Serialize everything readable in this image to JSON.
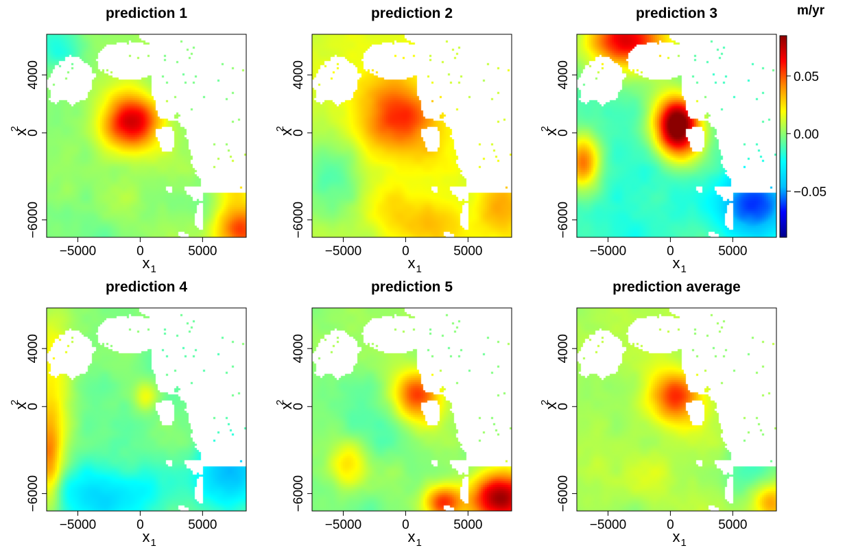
{
  "figure": {
    "type": "heatmap",
    "units": "m/yr"
  },
  "chart_data": {
    "type": "heatmap",
    "colorbar": {
      "label": "m/yr",
      "range": [
        -0.09,
        0.085
      ],
      "ticks": [
        -0.05,
        0.0,
        0.05
      ],
      "tick_labels": [
        "−0.05",
        "0.00",
        "0.05"
      ],
      "colors": [
        "#00008b",
        "#0000ff",
        "#00bfff",
        "#00ffff",
        "#7fff7f",
        "#ffff00",
        "#ff8c00",
        "#ff0000",
        "#8b0000"
      ]
    },
    "x_axis": {
      "label": "x",
      "sub": "1",
      "range": [
        -7500,
        8500
      ],
      "ticks": [
        -5000,
        0,
        5000
      ],
      "tick_labels": [
        "−5000",
        "0",
        "5000"
      ]
    },
    "y_axis": {
      "label": "x",
      "sub": "2",
      "range": [
        -7200,
        6800
      ],
      "ticks": [
        -6000,
        0,
        4000
      ],
      "tick_labels": [
        "−6000",
        "0",
        "4000"
      ]
    },
    "panels": [
      {
        "title": "prediction 1",
        "base": 0.0,
        "hotspots": [
          {
            "x": -700,
            "y": 700,
            "sx": 1700,
            "sy": 1400,
            "v": 0.07
          },
          {
            "x": 8000,
            "y": -6700,
            "sx": 1500,
            "sy": 1200,
            "v": 0.05
          },
          {
            "x": 7500,
            "y": -3500,
            "sx": 1200,
            "sy": 1200,
            "v": 0.025
          },
          {
            "x": -6500,
            "y": 5800,
            "sx": 1500,
            "sy": 1200,
            "v": -0.02
          }
        ]
      },
      {
        "title": "prediction 2",
        "base": 0.012,
        "hotspots": [
          {
            "x": -500,
            "y": 1000,
            "sx": 2400,
            "sy": 1900,
            "v": 0.055
          },
          {
            "x": 1500,
            "y": -6000,
            "sx": 2800,
            "sy": 1300,
            "v": 0.03
          },
          {
            "x": 7500,
            "y": -4800,
            "sx": 1400,
            "sy": 1600,
            "v": 0.035
          },
          {
            "x": -6000,
            "y": -3000,
            "sx": 1800,
            "sy": 2000,
            "v": -0.012
          }
        ]
      },
      {
        "title": "prediction 3",
        "base": -0.01,
        "hotspots": [
          {
            "x": 600,
            "y": 400,
            "sx": 1300,
            "sy": 1500,
            "v": 0.1
          },
          {
            "x": -3500,
            "y": 6400,
            "sx": 2400,
            "sy": 1400,
            "v": 0.065
          },
          {
            "x": -7000,
            "y": -2000,
            "sx": 900,
            "sy": 1300,
            "v": 0.045
          },
          {
            "x": 7000,
            "y": -5000,
            "sx": 2200,
            "sy": 1800,
            "v": -0.06
          },
          {
            "x": -1500,
            "y": -4000,
            "sx": 3000,
            "sy": 2500,
            "v": -0.02
          }
        ]
      },
      {
        "title": "prediction 4",
        "base": -0.005,
        "hotspots": [
          {
            "x": -2500,
            "y": -6000,
            "sx": 3500,
            "sy": 1500,
            "v": -0.035
          },
          {
            "x": 7500,
            "y": -4500,
            "sx": 1800,
            "sy": 1800,
            "v": -0.045
          },
          {
            "x": -7300,
            "y": -4000,
            "sx": 700,
            "sy": 2500,
            "v": 0.035
          },
          {
            "x": -7000,
            "y": 2000,
            "sx": 1200,
            "sy": 4000,
            "v": 0.02
          },
          {
            "x": 500,
            "y": 600,
            "sx": 700,
            "sy": 700,
            "v": 0.015
          }
        ]
      },
      {
        "title": "prediction 5",
        "base": 0.0,
        "hotspots": [
          {
            "x": 1000,
            "y": 700,
            "sx": 1400,
            "sy": 1300,
            "v": 0.055
          },
          {
            "x": 7500,
            "y": -6300,
            "sx": 1800,
            "sy": 1300,
            "v": 0.08
          },
          {
            "x": -4500,
            "y": -4000,
            "sx": 1000,
            "sy": 1200,
            "v": 0.03
          },
          {
            "x": 3000,
            "y": -6600,
            "sx": 1000,
            "sy": 800,
            "v": 0.05
          },
          {
            "x": -2500,
            "y": -1500,
            "sx": 2500,
            "sy": 2500,
            "v": -0.01
          }
        ]
      },
      {
        "title": "prediction average",
        "base": 0.004,
        "hotspots": [
          {
            "x": 500,
            "y": 600,
            "sx": 1500,
            "sy": 1300,
            "v": 0.055
          },
          {
            "x": 8000,
            "y": -6600,
            "sx": 1000,
            "sy": 900,
            "v": 0.035
          },
          {
            "x": -4000,
            "y": -5500,
            "sx": 3000,
            "sy": 1500,
            "v": 0.01
          },
          {
            "x": 7000,
            "y": -4000,
            "sx": 1500,
            "sy": 1500,
            "v": -0.01
          }
        ]
      }
    ]
  }
}
